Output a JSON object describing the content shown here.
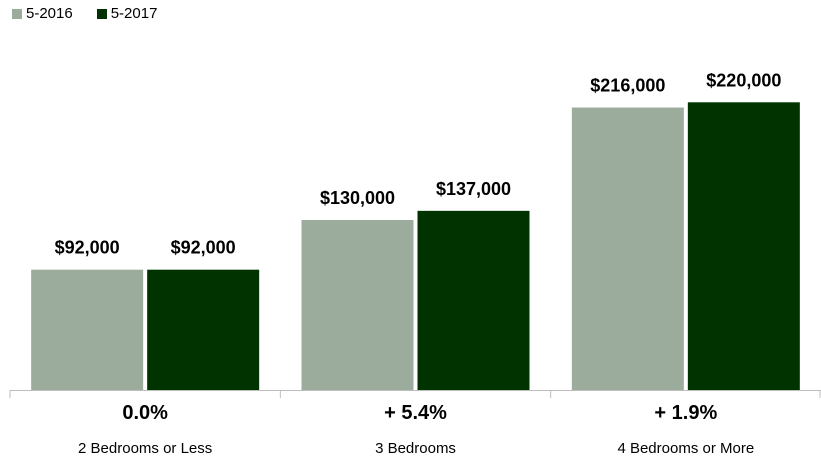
{
  "colors": {
    "series_2016": "#9bac9d",
    "series_2017": "#003300",
    "axis": "#bdbdbd"
  },
  "chart_data": {
    "type": "bar",
    "categories": [
      "2 Bedrooms or Less",
      "3 Bedrooms",
      "4 Bedrooms or More"
    ],
    "change_labels": [
      "0.0%",
      "+ 5.4%",
      "+ 1.9%"
    ],
    "series": [
      {
        "name": "5-2016",
        "values": [
          92000,
          130000,
          216000
        ],
        "labels": [
          "$92,000",
          "$130,000",
          "$216,000"
        ]
      },
      {
        "name": "5-2017",
        "values": [
          92000,
          137000,
          220000
        ],
        "labels": [
          "$92,000",
          "$137,000",
          "$220,000"
        ]
      }
    ],
    "ylim": [
      0,
      260000
    ],
    "grid": false,
    "legend_position": "top-left"
  }
}
